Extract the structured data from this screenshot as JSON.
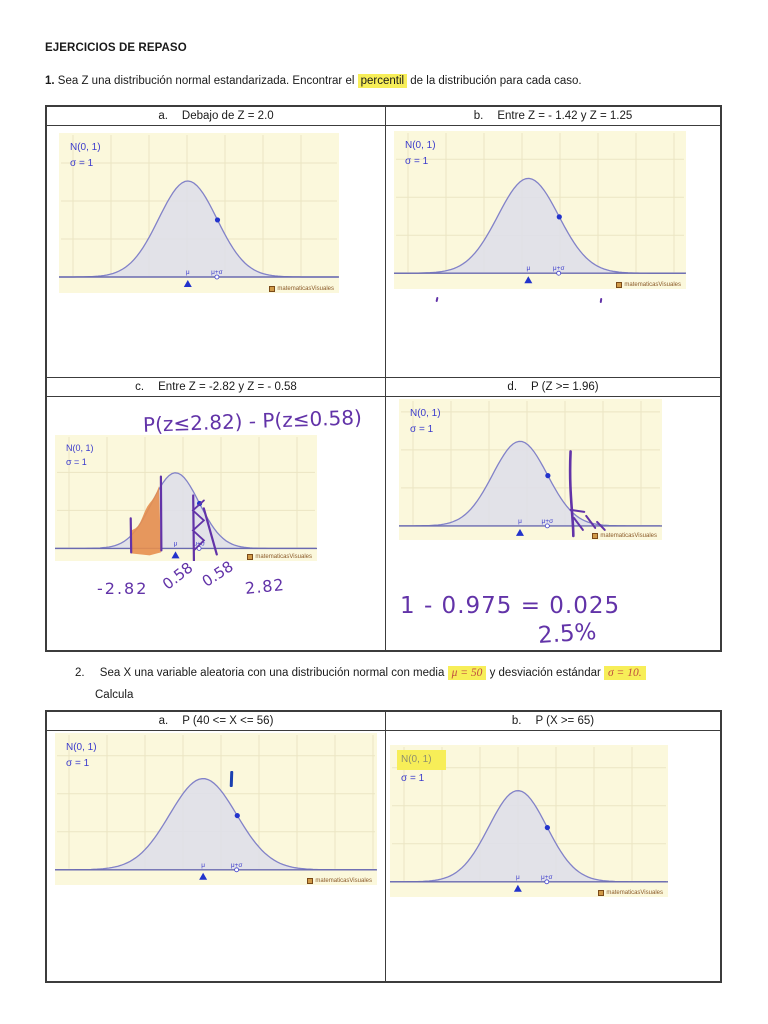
{
  "title": "EJERCICIOS DE REPASO",
  "exercise1": {
    "number": "1.",
    "pre": "Sea Z una distribución normal estandarizada.  Encontrar el",
    "highlighted": "percentil",
    "post": "de la distribución para cada caso."
  },
  "exercise2": {
    "number": "2.",
    "pre": "Sea X una variable aleatoria con una distribución normal con media",
    "highlight1": "μ = 50",
    "mid": "y desviación estándar",
    "highlight2": "σ = 10.",
    "line2": "Calcula"
  },
  "chart_defaults": {
    "dist_label": "N(0, 1)",
    "sigma_label": "σ = 1",
    "mu_label": "μ",
    "mu_sigma_label": "μ+σ",
    "watermark": "matematicasVisuales"
  },
  "table1": {
    "cells": [
      {
        "label": "a.",
        "title": "Debajo de Z = 2.0"
      },
      {
        "label": "b.",
        "title": "Entre Z = - 1.42 y Z = 1.25"
      },
      {
        "label": "c.",
        "title": "Entre Z = -2.82 y Z = - 0.58",
        "handwriting": {
          "formula": "P(z≤2.82) - P(z≤0.58)",
          "axis_labels": [
            "-2.82",
            "0.58",
            "0.58",
            "2.82"
          ]
        }
      },
      {
        "label": "d.",
        "title": "P (Z >= 1.96)",
        "handwriting": {
          "line1": "1 - 0.975 = 0.025",
          "line2": "2.5%"
        }
      }
    ]
  },
  "table2": {
    "cells": [
      {
        "label": "a.",
        "title": "P (40 <= X <= 56)"
      },
      {
        "label": "b.",
        "title": "P (X >= 65)"
      }
    ]
  },
  "colors": {
    "highlight": "#f7ee58",
    "math_red": "#bf4e41",
    "ink_purple": "#6233a8",
    "orange": "#e78f4e",
    "chart_bg": "#fbf8dc",
    "grid": "#ebe5c3",
    "curve": "#8282c8",
    "curve_fill": "#dfdfe9",
    "axis": "#6a6ab0",
    "chart_label_blue": "#3b3bcc",
    "marker_blue": "#2233cc",
    "watermark_brown": "#8a5a28",
    "border": "#3c3c3c"
  }
}
